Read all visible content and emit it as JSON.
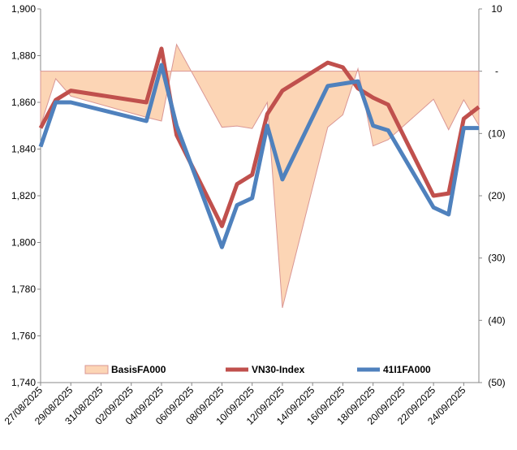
{
  "chart_data": {
    "type": "line",
    "x": [
      "27/08/2025",
      "28/08/2025",
      "29/08/2025",
      "03/09/2025",
      "04/09/2025",
      "05/09/2025",
      "08/09/2025",
      "09/09/2025",
      "10/09/2025",
      "11/09/2025",
      "12/09/2025",
      "15/09/2025",
      "16/09/2025",
      "17/09/2025",
      "18/09/2025",
      "19/09/2025",
      "22/09/2025",
      "23/09/2025",
      "24/09/2025",
      "25/09/2025"
    ],
    "xticks": [
      "27/08/2025",
      "29/08/2025",
      "31/08/2025",
      "02/09/2025",
      "04/09/2025",
      "06/09/2025",
      "08/09/2025",
      "10/09/2025",
      "12/09/2025",
      "14/09/2025",
      "16/09/2025",
      "18/09/2025",
      "20/09/2025",
      "22/09/2025",
      "24/09/2025"
    ],
    "ylim": [
      1740,
      1900
    ],
    "yticks": [
      {
        "value": 1740,
        "label": "1,740"
      },
      {
        "value": 1760,
        "label": "1,760"
      },
      {
        "value": 1780,
        "label": "1,780"
      },
      {
        "value": 1800,
        "label": "1,800"
      },
      {
        "value": 1820,
        "label": "1,820"
      },
      {
        "value": 1840,
        "label": "1,840"
      },
      {
        "value": 1860,
        "label": "1,860"
      },
      {
        "value": 1880,
        "label": "1,880"
      },
      {
        "value": 1900,
        "label": "1,900"
      }
    ],
    "y2lim": [
      -50,
      10
    ],
    "y2ticks": [
      {
        "value": -50,
        "label": "(50)"
      },
      {
        "value": -40,
        "label": "(40)"
      },
      {
        "value": -30,
        "label": "(30)"
      },
      {
        "value": -20,
        "label": "(20)"
      },
      {
        "value": -10,
        "label": "(10)"
      },
      {
        "value": 0,
        "label": "-"
      },
      10
    ],
    "legend": "bottom",
    "series": [
      {
        "name": "BasisFA000",
        "type": "area",
        "axis": "y2",
        "color": "#fcd5b5",
        "stroke": "#d99694",
        "values": [
          -8.7,
          -1.2,
          -4,
          -7.4,
          -8,
          4.3,
          -9,
          -8.8,
          -9.2,
          -5,
          -38,
          -9,
          -7,
          0.4,
          -12,
          -11,
          -4.5,
          -9.4,
          -4.6,
          -8.7
        ]
      },
      {
        "name": "VN30-Index",
        "type": "line",
        "color": "#c0504d",
        "values": [
          1849,
          1861,
          1865,
          1860,
          1883,
          1846,
          1807,
          1825,
          1829,
          1855,
          1865,
          1877,
          1875,
          1866,
          1862,
          1859,
          1820,
          1821,
          1853,
          1858
        ]
      },
      {
        "name": "41I1FA000",
        "type": "line",
        "color": "#4f81bd",
        "values": [
          1841,
          1860,
          1860,
          1852,
          1876,
          1850,
          1798,
          1816,
          1819,
          1850,
          1827,
          1867,
          1868,
          1869,
          1850,
          1848,
          1815,
          1812,
          1849,
          1849
        ]
      }
    ]
  }
}
